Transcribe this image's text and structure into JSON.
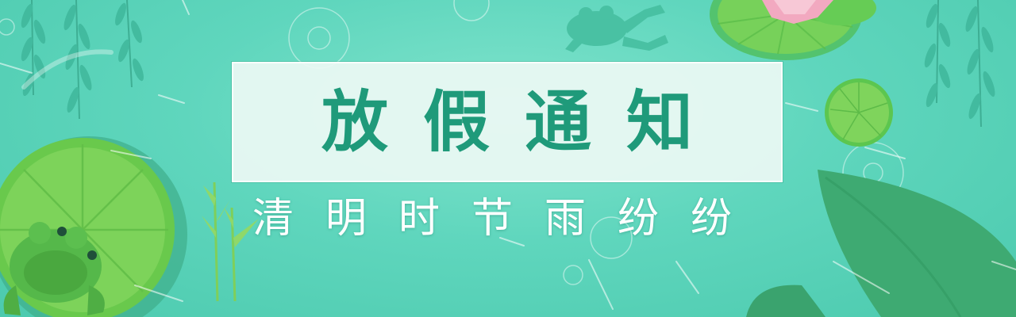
{
  "banner": {
    "title": "放假通知",
    "subtitle": "清明时节雨纷纷"
  },
  "colors": {
    "background": "#5fd6bd",
    "title_text": "#1f9a7a",
    "subtitle_text": "#ffffff",
    "title_box": "#ecf9f4",
    "leaf_green": "#6cc94a",
    "lotus_pink": "#f2a9c0"
  },
  "icons": [
    "willow-branch-icon",
    "lotus-leaf-icon",
    "frog-icon",
    "lotus-flower-icon",
    "reed-icon",
    "ripple-icon",
    "rain-streak-icon"
  ]
}
